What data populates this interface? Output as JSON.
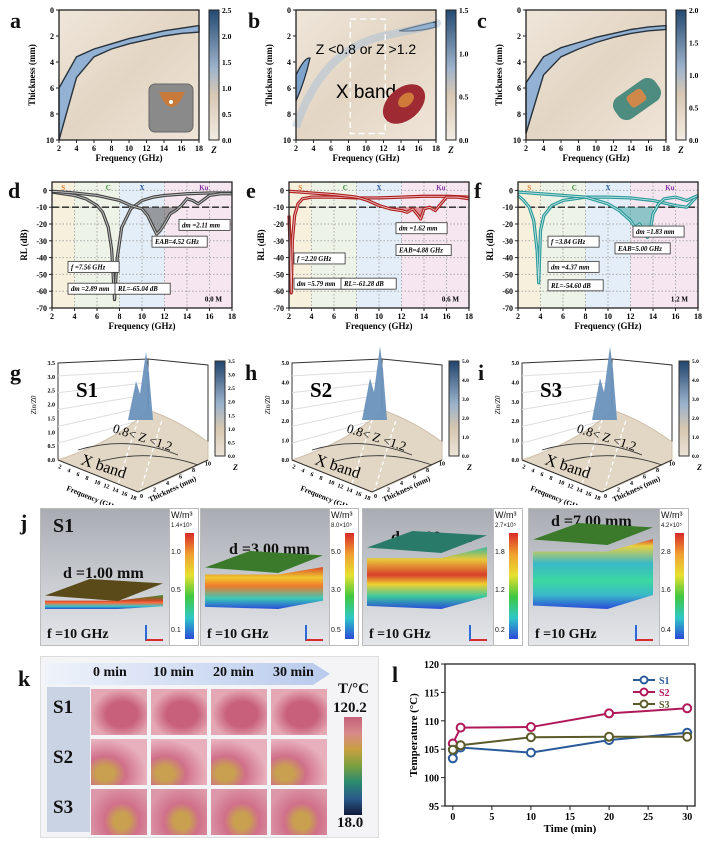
{
  "panels": {
    "a": {
      "label": "a"
    },
    "b": {
      "label": "b"
    },
    "c": {
      "label": "c"
    },
    "d": {
      "label": "d"
    },
    "e": {
      "label": "e"
    },
    "f": {
      "label": "f"
    },
    "g": {
      "label": "g"
    },
    "h": {
      "label": "h"
    },
    "i": {
      "label": "i"
    },
    "j": {
      "label": "j"
    },
    "k": {
      "label": "k"
    },
    "l": {
      "label": "l"
    }
  },
  "chart_data": [
    {
      "id": "a",
      "type": "heatmap",
      "xlabel": "Frequency (GHz)",
      "ylabel": "Thickness (mm)",
      "colorbar_label": "Z",
      "xlim": [
        2,
        18
      ],
      "ylim": [
        10,
        0
      ],
      "xticks": [
        "2",
        "4",
        "6",
        "8",
        "10",
        "12",
        "14",
        "16",
        "18"
      ],
      "yticks": [
        "0",
        "2",
        "4",
        "6",
        "8",
        "10"
      ],
      "colorbar": {
        "range": [
          0,
          2.5
        ],
        "ticks": [
          "2.5",
          "2.0",
          "1.5",
          "1.0",
          "0.5",
          "0.0"
        ]
      },
      "matched_band": {
        "freq": [
          2,
          4,
          6,
          8,
          10,
          12,
          14,
          16,
          18
        ],
        "upper": [
          6.0,
          3.6,
          3.0,
          2.6,
          2.2,
          1.9,
          1.6,
          1.4,
          1.2
        ],
        "lower": [
          10.0,
          5.2,
          3.6,
          3.0,
          2.6,
          2.3,
          2.0,
          1.8,
          1.7
        ]
      },
      "inset": "cube-particle"
    },
    {
      "id": "b",
      "type": "heatmap",
      "xlabel": "Frequency (GHz)",
      "ylabel": "Thickness (mm)",
      "colorbar_label": "Z",
      "xlim": [
        2,
        18
      ],
      "ylim": [
        10,
        0
      ],
      "xticks": [
        "2",
        "4",
        "6",
        "8",
        "10",
        "12",
        "14",
        "16",
        "18"
      ],
      "yticks": [
        "0",
        "2",
        "4",
        "6",
        "8",
        "10"
      ],
      "colorbar": {
        "range": [
          0,
          1.5
        ],
        "ticks": [
          "1.5",
          "1.0",
          "0.5",
          "0.0"
        ]
      },
      "annotations": [
        "Z <0.8 or Z >1.2",
        "X band"
      ],
      "xband_box": [
        8.2,
        12.2
      ],
      "inset": "ellipsoid-particle"
    },
    {
      "id": "c",
      "type": "heatmap",
      "xlabel": "Frequency (GHz)",
      "ylabel": "Thickness (mm)",
      "colorbar_label": "Z",
      "xlim": [
        2,
        18
      ],
      "ylim": [
        10,
        0
      ],
      "xticks": [
        "2",
        "4",
        "6",
        "8",
        "10",
        "12",
        "14",
        "16",
        "18"
      ],
      "yticks": [
        "0",
        "2",
        "4",
        "6",
        "8",
        "10"
      ],
      "colorbar": {
        "range": [
          0,
          2.0
        ],
        "ticks": [
          "2.0",
          "1.5",
          "1.0",
          "0.5",
          "0.0"
        ]
      },
      "matched_band": {
        "freq": [
          2,
          4,
          6,
          8,
          10,
          12,
          14,
          16,
          18
        ],
        "upper": [
          5.6,
          3.6,
          2.9,
          2.5,
          2.1,
          1.8,
          1.5,
          1.3,
          1.2
        ],
        "lower": [
          9.5,
          5.0,
          3.6,
          3.0,
          2.5,
          2.1,
          1.8,
          1.6,
          1.5
        ]
      },
      "inset": "rod-particle"
    },
    {
      "id": "d",
      "type": "line",
      "xlabel": "Frequency (GHz)",
      "ylabel": "RL (dB)",
      "xlim": [
        2,
        18
      ],
      "ylim": [
        -70,
        5
      ],
      "xticks": [
        "2",
        "4",
        "6",
        "8",
        "10",
        "12",
        "14",
        "16",
        "18"
      ],
      "yticks": [
        "0",
        "-10",
        "-20",
        "-30",
        "-40",
        "-50",
        "-60",
        "-70"
      ],
      "bands": [
        {
          "name": "S",
          "color": "#e07a2a"
        },
        {
          "name": "C",
          "color": "#3a8a3a"
        },
        {
          "name": "X",
          "color": "#2a5aa8"
        },
        {
          "name": "Ku",
          "color": "#8a3aa8"
        }
      ],
      "series_color": "#444444",
      "fill_color": "#555555",
      "series": [
        {
          "name": "dm=2.89 mm",
          "x": [
            2,
            3,
            4,
            5,
            6,
            6.5,
            7,
            7.3,
            7.56,
            7.8,
            8.2,
            9,
            10,
            11,
            12,
            14,
            16,
            18
          ],
          "y": [
            -1,
            -2,
            -3,
            -5,
            -9,
            -13,
            -22,
            -35,
            -65,
            -40,
            -22,
            -11,
            -6,
            -4,
            -3,
            -2,
            -1.5,
            -1.5
          ]
        },
        {
          "name": "dm=2.11 mm",
          "x": [
            2,
            4,
            6,
            8,
            9,
            10,
            10.5,
            11,
            11.3,
            11.6,
            12,
            12.5,
            13,
            13.5,
            14,
            14.5,
            15,
            16,
            17,
            18
          ],
          "y": [
            -0.5,
            -1.5,
            -3,
            -6,
            -9,
            -11,
            -15,
            -22,
            -26,
            -24,
            -20,
            -14,
            -12,
            -9,
            -5,
            -6,
            -8,
            -3,
            -2,
            -2
          ]
        }
      ],
      "labels": [
        "f =7.56 GHz",
        "dm =2.89 mm",
        "RL=-65.04 dB",
        "dm =2.11 mm",
        "EAB=4.52 GHz",
        "0.0 M"
      ]
    },
    {
      "id": "e",
      "type": "line",
      "xlabel": "Frequency (GHz)",
      "ylabel": "RL (dB)",
      "xlim": [
        2,
        18
      ],
      "ylim": [
        -70,
        5
      ],
      "xticks": [
        "2",
        "4",
        "6",
        "8",
        "10",
        "12",
        "14",
        "16",
        "18"
      ],
      "yticks": [
        "0",
        "-10",
        "-20",
        "-30",
        "-40",
        "-50",
        "-60",
        "-70"
      ],
      "bands": [
        {
          "name": "S",
          "color": "#e07a2a"
        },
        {
          "name": "C",
          "color": "#3a8a3a"
        },
        {
          "name": "X",
          "color": "#2a5aa8"
        },
        {
          "name": "Ku",
          "color": "#8a3aa8"
        }
      ],
      "series_color": "#b01e1e",
      "fill_color": "#c84a4a",
      "series": [
        {
          "name": "dm=5.79 mm",
          "x": [
            2,
            2.1,
            2.2,
            2.3,
            2.5,
            2.8,
            3.2,
            4,
            6,
            8,
            10,
            12,
            14,
            16,
            18
          ],
          "y": [
            -15,
            -35,
            -61,
            -30,
            -15,
            -8,
            -5,
            -4,
            -4,
            -4.5,
            -4.5,
            -4,
            -3.5,
            -3.5,
            -4
          ]
        },
        {
          "name": "dm=1.62 mm",
          "x": [
            2,
            4,
            6,
            8,
            9,
            10,
            11,
            12,
            12.5,
            13,
            13.5,
            13.7,
            14,
            14.5,
            15,
            15.5,
            16,
            17,
            18
          ],
          "y": [
            -0.5,
            -1.5,
            -2.5,
            -4,
            -6,
            -9,
            -11,
            -12,
            -13,
            -11,
            -15,
            -17,
            -11,
            -10,
            -12,
            -8,
            -4,
            -4,
            -5
          ]
        }
      ],
      "labels": [
        "f =2.20 GHz",
        "dm =5.79 mm",
        "RL=-61.28 dB",
        "dm =1.62 mm",
        "EAB=4.88 GHz",
        "0.6 M"
      ]
    },
    {
      "id": "f",
      "type": "line",
      "xlabel": "Frequency (GHz)",
      "ylabel": "RL (dB)",
      "xlim": [
        2,
        18
      ],
      "ylim": [
        -70,
        5
      ],
      "xticks": [
        "2",
        "4",
        "6",
        "8",
        "10",
        "12",
        "14",
        "16",
        "18"
      ],
      "yticks": [
        "0",
        "-10",
        "-20",
        "-30",
        "-40",
        "-50",
        "-60",
        "-70"
      ],
      "bands": [
        {
          "name": "S",
          "color": "#e07a2a"
        },
        {
          "name": "C",
          "color": "#3a8a3a"
        },
        {
          "name": "X",
          "color": "#2a5aa8"
        },
        {
          "name": "Ku",
          "color": "#8a3aa8"
        }
      ],
      "series_color": "#2a9a9a",
      "fill_color": "#3aa8a8",
      "series": [
        {
          "name": "dm=4.37 mm",
          "x": [
            2,
            2.5,
            3,
            3.4,
            3.7,
            3.84,
            4,
            4.3,
            5,
            6,
            8,
            10,
            12,
            14,
            16,
            17,
            18
          ],
          "y": [
            -3,
            -6,
            -10,
            -18,
            -36,
            -55,
            -24,
            -15,
            -9,
            -6,
            -4,
            -4,
            -4.5,
            -6,
            -9,
            -10,
            -3
          ]
        },
        {
          "name": "dm=1.83 mm",
          "x": [
            2,
            4,
            6,
            8,
            10,
            11,
            12,
            12.4,
            12.8,
            13.2,
            13.5,
            13.8,
            14,
            14.5,
            15,
            16,
            17,
            18
          ],
          "y": [
            -1,
            -2,
            -3,
            -4,
            -8,
            -12,
            -18,
            -22,
            -20,
            -24,
            -28,
            -22,
            -14,
            -8,
            -5,
            -4,
            -6,
            -3
          ]
        }
      ],
      "labels": [
        "f =3.84 GHz",
        "dm =4.37 mm",
        "RL=-54.60 dB",
        "dm =1.83 mm",
        "EAB=5.00 GHz",
        "1.2 M"
      ]
    },
    {
      "id": "g",
      "type": "area",
      "subtitle": "S1",
      "xlabel": "Frequency (GHz)",
      "ylabel": "Zin/Z0",
      "zlabel": "Thickness (mm)",
      "colorbar_label": "Z",
      "zlim": [
        0,
        3.5
      ],
      "zticks": [
        "0.0",
        "0.5",
        "1.0",
        "1.5",
        "2.0",
        "2.5",
        "3.0",
        "3.5"
      ],
      "colorbar_ticks": [
        "3.5",
        "3.0",
        "2.5",
        "2.0",
        "1.5",
        "1.0",
        "0.5",
        "0.0"
      ],
      "xticks": [
        "2",
        "4",
        "6",
        "8",
        "10",
        "12",
        "14",
        "16",
        "18"
      ],
      "yticks": [
        "0",
        "2",
        "4",
        "6",
        "8",
        "10"
      ],
      "annotations": [
        "0.8< Z <1.2",
        "X band"
      ],
      "peak_max": 3.0
    },
    {
      "id": "h",
      "type": "area",
      "subtitle": "S2",
      "xlabel": "Frequency (GHz)",
      "ylabel": "Zin/Z0",
      "zlabel": "Thickness (mm)",
      "colorbar_label": "Z",
      "zlim": [
        0,
        5.0
      ],
      "zticks": [
        "0.0",
        "1.0",
        "2.0",
        "3.0",
        "4.0",
        "5.0"
      ],
      "colorbar_ticks": [
        "5.0",
        "4.0",
        "3.0",
        "2.0",
        "1.0",
        "0.0"
      ],
      "xticks": [
        "2",
        "4",
        "6",
        "8",
        "10",
        "12",
        "14",
        "16",
        "18"
      ],
      "yticks": [
        "0",
        "2",
        "4",
        "6",
        "8",
        "10"
      ],
      "annotations": [
        "0.8< Z <1.2",
        "X band"
      ],
      "peak_max": 4.6
    },
    {
      "id": "i",
      "type": "area",
      "subtitle": "S3",
      "xlabel": "Frequency (GHz)",
      "ylabel": "Zin/Z0",
      "zlabel": "Thickness (mm)",
      "colorbar_label": "Z",
      "zlim": [
        0,
        5.0
      ],
      "zticks": [
        "0.0",
        "1.0",
        "2.0",
        "3.0",
        "4.0",
        "5.0"
      ],
      "colorbar_ticks": [
        "5.0",
        "4.0",
        "3.0",
        "2.0",
        "1.0",
        "0.0"
      ],
      "xticks": [
        "2",
        "4",
        "6",
        "8",
        "10",
        "12",
        "14",
        "16",
        "18"
      ],
      "yticks": [
        "0",
        "2",
        "4",
        "6",
        "8",
        "10"
      ],
      "annotations": [
        "0.8< Z <1.2",
        "X band"
      ],
      "peak_max": 4.6
    },
    {
      "id": "l",
      "type": "line",
      "xlabel": "Time (min)",
      "ylabel": "Temperature (°C)",
      "xlim": [
        -1,
        31
      ],
      "ylim": [
        95,
        120
      ],
      "xticks": [
        "0",
        "5",
        "10",
        "15",
        "20",
        "25",
        "30"
      ],
      "yticks": [
        "95",
        "100",
        "105",
        "110",
        "115",
        "120"
      ],
      "legend_position": "top-right",
      "series": [
        {
          "name": "S1",
          "color": "#2a5a9a",
          "x": [
            0,
            1,
            10,
            20,
            30
          ],
          "y": [
            103.4,
            105.3,
            104.4,
            106.6,
            107.9
          ]
        },
        {
          "name": "S2",
          "color": "#b0185a",
          "x": [
            0,
            1,
            10,
            20,
            30
          ],
          "y": [
            106.0,
            108.8,
            108.9,
            111.3,
            112.2
          ]
        },
        {
          "name": "S3",
          "color": "#5a5a2a",
          "x": [
            0,
            1,
            10,
            20,
            30
          ],
          "y": [
            104.9,
            105.7,
            107.1,
            107.2,
            107.2
          ]
        }
      ]
    }
  ],
  "panel_j": {
    "sample": "S1",
    "unit": "W/m³",
    "frequency_label": "f =10 GHz",
    "blocks": [
      {
        "thickness": "d =1.00 mm",
        "cb_max": "1.4×10⁵",
        "cb_ticks": [
          "1.0",
          "0.5",
          "0.1"
        ]
      },
      {
        "thickness": "d =3.00 mm",
        "cb_max": "8.0×10⁵",
        "cb_ticks": [
          "5.0",
          "3.0",
          "0.5"
        ]
      },
      {
        "thickness": "d =5.00 mm",
        "cb_max": "2.7×10⁵",
        "cb_ticks": [
          "1.8",
          "1.2",
          "0.2"
        ]
      },
      {
        "thickness": "d =7.00 mm",
        "cb_max": "4.2×10⁵",
        "cb_ticks": [
          "2.8",
          "1.6",
          "0.4"
        ]
      }
    ]
  },
  "panel_k": {
    "times": [
      "0 min",
      "10 min",
      "20 min",
      "30 min"
    ],
    "samples": [
      "S1",
      "S2",
      "S3"
    ],
    "colorbar_title": "T/°C",
    "colorbar_max": "120.2",
    "colorbar_min": "18.0"
  }
}
